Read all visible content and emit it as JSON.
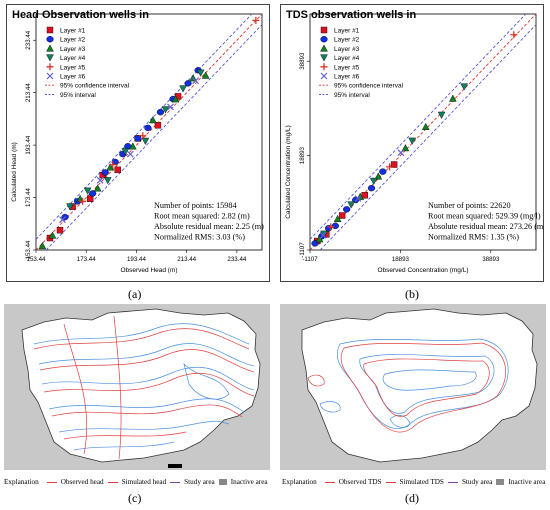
{
  "colors": {
    "layer1": "#e01020",
    "layer2": "#1030e0",
    "layer3": "#108020",
    "layer4": "#108060",
    "layer5": "#e03020",
    "layer6": "#6060d0",
    "conf": "#e03030",
    "interval": "#4040e0",
    "inactive": "#c8c8c8",
    "obs": "#e04040",
    "sim": "#4090e0",
    "study": "#8040a0"
  },
  "chart_data": [
    {
      "type": "scatter",
      "title": "Head Observation wells in",
      "xlabel": "Observed Head (m)",
      "ylabel": "Calculated Head (m)",
      "xlim": [
        153.44,
        243.44
      ],
      "ylim": [
        153.44,
        243.44
      ],
      "xticks": [
        "153.44",
        "173.44",
        "193.44",
        "213.44",
        "233.44"
      ],
      "yticks": [
        "153.44",
        "173.44",
        "193.44",
        "213.44",
        "233.44"
      ],
      "legend_position": "top-left",
      "series": [
        {
          "name": "Layer #1",
          "x": [
            159,
            163,
            168,
            175,
            180,
            186,
            194,
            202,
            210
          ],
          "y": [
            158,
            161,
            170,
            173,
            182,
            184,
            196,
            201,
            212
          ]
        },
        {
          "name": "Layer #2",
          "x": [
            165,
            170,
            176,
            181,
            185,
            188,
            190,
            194,
            198,
            203,
            208,
            214,
            218
          ],
          "y": [
            166,
            172,
            175,
            183,
            187,
            190,
            193,
            196,
            200,
            206,
            211,
            217,
            222
          ]
        },
        {
          "name": "Layer #3",
          "x": [
            156,
            160,
            171,
            178,
            183,
            192,
            200,
            209,
            216,
            221
          ],
          "y": [
            155,
            159,
            173,
            177,
            185,
            193,
            203,
            211,
            219,
            220
          ]
        },
        {
          "name": "Layer #4",
          "x": [
            167,
            174,
            182,
            189,
            197,
            205,
            212,
            219
          ],
          "y": [
            170,
            176,
            180,
            191,
            195,
            207,
            215,
            221
          ]
        },
        {
          "name": "Layer #5",
          "x": [
            172,
            184,
            196,
            241
          ],
          "y": [
            172,
            186,
            197,
            241
          ]
        },
        {
          "name": "Layer #6",
          "x": [
            164,
            179,
            191,
            207,
            217
          ],
          "y": [
            165,
            180,
            190,
            208,
            218
          ]
        }
      ],
      "legend_lines": [
        "95% confidence interval",
        "95% interval"
      ],
      "stats": [
        "Number of points: 15984",
        "Root mean squared: 2.82 (m)",
        "Absolute residual mean: 2.25 (m)",
        "Normalized RMS: 3.03 (%)"
      ],
      "panel_label": "(a)"
    },
    {
      "type": "scatter",
      "title": "TDS observation wells in",
      "xlabel": "Observed Concentration (mg/L)",
      "ylabel": "Calculated Concentration (mg/L)",
      "xlim": [
        -1107,
        48893
      ],
      "ylim": [
        -1107,
        48893
      ],
      "xticks": [
        "-1107",
        "18893",
        "38893"
      ],
      "yticks": [
        "-1107",
        "18893",
        "38893"
      ],
      "legend_position": "top-left",
      "series": [
        {
          "name": "Layer #1",
          "x": [
            500,
            2500,
            6000,
            11000,
            17500
          ],
          "y": [
            800,
            2200,
            6200,
            10500,
            17000
          ]
        },
        {
          "name": "Layer #2",
          "x": [
            0,
            1500,
            3000,
            4500,
            7000,
            9000,
            12500,
            15000
          ],
          "y": [
            300,
            1800,
            3500,
            4000,
            7500,
            9500,
            12000,
            15500
          ]
        },
        {
          "name": "Layer #3",
          "x": [
            1000,
            5000,
            10000,
            14000,
            20000,
            24500,
            30500
          ],
          "y": [
            1200,
            5500,
            10200,
            14500,
            20500,
            25000,
            31000
          ]
        },
        {
          "name": "Layer #4",
          "x": [
            2000,
            8000,
            13000,
            21500,
            28000,
            33000
          ],
          "y": [
            2300,
            8500,
            13500,
            22000,
            27500,
            33500
          ]
        },
        {
          "name": "Layer #5",
          "x": [
            3500,
            16500,
            44000
          ],
          "y": [
            3800,
            16500,
            44500
          ]
        },
        {
          "name": "Layer #6",
          "x": [
            1800,
            9500,
            19000
          ],
          "y": [
            2000,
            9800,
            19500
          ]
        }
      ],
      "legend_lines": [
        "95% confidence interval",
        "95% interval"
      ],
      "stats": [
        "Number of points: 22620",
        "Root mean squared: 529.39 (mg/l)",
        "Absolute residual mean: 273.26 (mg/l)",
        "Normalized RMS: 1.35 (%)"
      ],
      "panel_label": "(b)"
    }
  ],
  "maps": [
    {
      "panel_label": "(c)",
      "explanation": [
        "Explanation",
        "Observed head",
        "Simulated head",
        "Study area",
        "Inactive area"
      ]
    },
    {
      "panel_label": "(d)",
      "explanation": [
        "Explanation",
        "Observed TDS",
        "Simulated TDS",
        "Study area",
        "Inactive area"
      ]
    }
  ]
}
